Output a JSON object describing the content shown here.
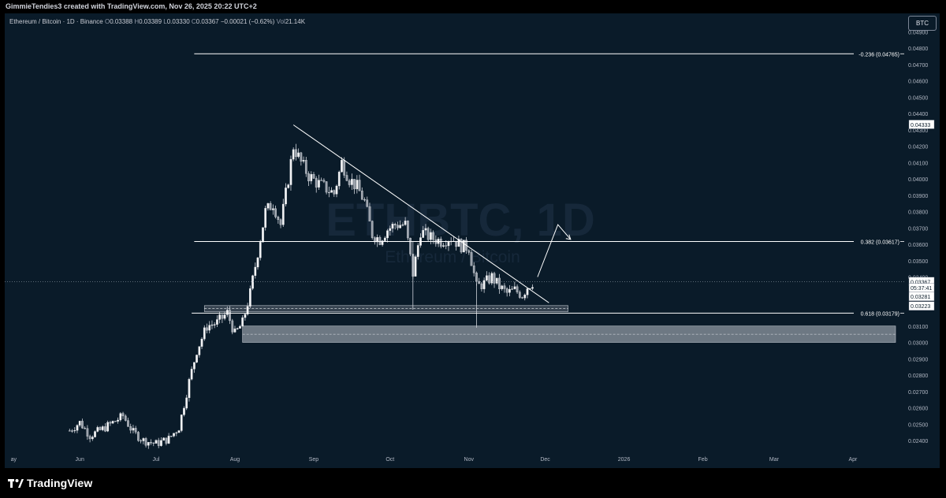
{
  "header": {
    "title": "GimmieTendies3 created with TradingView.com, Nov 26, 2025 20:22 UTC+2"
  },
  "legend": {
    "symbol": "Ethereum / Bitcoin · 1D · Binance",
    "o_label": "O",
    "o": "0.03388",
    "h_label": "H",
    "h": "0.03389",
    "l_label": "L",
    "l": "0.03330",
    "c_label": "C",
    "c": "0.03367",
    "change": "−0.00021 (−0.62%)",
    "vol_label": "Vol",
    "vol": "21.14K"
  },
  "currency_button": "BTC",
  "watermark": {
    "line1": "ETHBTC, 1D",
    "line2": "Ethereum / Bitcoin"
  },
  "brand": {
    "name": "TradingView"
  },
  "price_axis": {
    "labels": [
      "0.04900",
      "0.04800",
      "0.04700",
      "0.04600",
      "0.04500",
      "0.04400",
      "0.04300",
      "0.04200",
      "0.04100",
      "0.04000",
      "0.03900",
      "0.03800",
      "0.03700",
      "0.03600",
      "0.03500",
      "0.03400",
      "0.03100",
      "0.03000",
      "0.02900",
      "0.02800",
      "0.02700",
      "0.02600",
      "0.02500",
      "0.02400"
    ],
    "tags": [
      {
        "text": "0.04333",
        "value": 0.04333,
        "style": "box"
      },
      {
        "text": "0.03367",
        "value": 0.03372,
        "style": "box"
      },
      {
        "text": "05:37:41",
        "value": 0.03334,
        "style": "box"
      },
      {
        "text": "0.03281",
        "value": 0.03281,
        "style": "box"
      },
      {
        "text": "0.03223",
        "value": 0.03223,
        "style": "box"
      }
    ]
  },
  "fib_labels": [
    {
      "text": "-0.236 (0.04765)",
      "value": 0.04765
    },
    {
      "text": "0.382 (0.03617)",
      "value": 0.03617
    },
    {
      "text": "0.618 (0.03179)",
      "value": 0.03179
    }
  ],
  "colors": {
    "background": "#0a1b29",
    "up": "#e8eaed",
    "down": "#e8eaed",
    "line": "#ffffff",
    "zone": "#8a939f"
  },
  "chart_data": {
    "type": "candlestick",
    "title": "",
    "xlabel": "",
    "ylabel": "",
    "x_ticks": [
      "ay",
      "Jun",
      "Jul",
      "Aug",
      "Sep",
      "Oct",
      "Nov",
      "Dec",
      "2026",
      "Feb",
      "Mar",
      "Apr"
    ],
    "ylim": [
      0.0236,
      0.0493
    ],
    "last_close": 0.03367,
    "current_price_line": 0.03372,
    "series": [
      {
        "name": "Ethereum / Bitcoin",
        "close_path": [
          [
            "2025-05-28",
            0.0246
          ],
          [
            "2025-06-01",
            0.0251
          ],
          [
            "2025-06-05",
            0.0243
          ],
          [
            "2025-06-10",
            0.0247
          ],
          [
            "2025-06-15",
            0.0252
          ],
          [
            "2025-06-18",
            0.0255
          ],
          [
            "2025-06-22",
            0.0245
          ],
          [
            "2025-06-26",
            0.024
          ],
          [
            "2025-07-01",
            0.0238
          ],
          [
            "2025-07-06",
            0.0241
          ],
          [
            "2025-07-10",
            0.0248
          ],
          [
            "2025-07-14",
            0.0276
          ],
          [
            "2025-07-17",
            0.0295
          ],
          [
            "2025-07-21",
            0.031
          ],
          [
            "2025-07-25",
            0.0312
          ],
          [
            "2025-07-29",
            0.0318
          ],
          [
            "2025-08-01",
            0.0305
          ],
          [
            "2025-08-04",
            0.0312
          ],
          [
            "2025-08-07",
            0.033
          ],
          [
            "2025-08-10",
            0.0355
          ],
          [
            "2025-08-13",
            0.038
          ],
          [
            "2025-08-16",
            0.0385
          ],
          [
            "2025-08-19",
            0.0372
          ],
          [
            "2025-08-22",
            0.04
          ],
          [
            "2025-08-24",
            0.042
          ],
          [
            "2025-08-27",
            0.041
          ],
          [
            "2025-08-30",
            0.0402
          ],
          [
            "2025-09-02",
            0.0398
          ],
          [
            "2025-09-06",
            0.0394
          ],
          [
            "2025-09-09",
            0.0391
          ],
          [
            "2025-09-12",
            0.041
          ],
          [
            "2025-09-15",
            0.04
          ],
          [
            "2025-09-18",
            0.0395
          ],
          [
            "2025-09-21",
            0.0386
          ],
          [
            "2025-09-24",
            0.0366
          ],
          [
            "2025-09-27",
            0.0363
          ],
          [
            "2025-09-30",
            0.0369
          ],
          [
            "2025-10-03",
            0.0372
          ],
          [
            "2025-10-07",
            0.0372
          ],
          [
            "2025-10-10",
            0.0342
          ],
          [
            "2025-10-13",
            0.0368
          ],
          [
            "2025-10-17",
            0.0364
          ],
          [
            "2025-10-21",
            0.0362
          ],
          [
            "2025-10-25",
            0.0364
          ],
          [
            "2025-10-29",
            0.0359
          ],
          [
            "2025-11-01",
            0.0358
          ],
          [
            "2025-11-04",
            0.0334
          ],
          [
            "2025-11-07",
            0.0336
          ],
          [
            "2025-11-10",
            0.034
          ],
          [
            "2025-11-13",
            0.0334
          ],
          [
            "2025-11-16",
            0.033
          ],
          [
            "2025-11-19",
            0.0332
          ],
          [
            "2025-11-22",
            0.0329
          ],
          [
            "2025-11-24",
            0.0334
          ],
          [
            "2025-11-26",
            0.03367
          ]
        ]
      }
    ],
    "annotations": {
      "fib_levels": [
        {
          "ratio": "-0.236",
          "price": 0.04765
        },
        {
          "ratio": "0.382",
          "price": 0.03617
        },
        {
          "ratio": "0.618",
          "price": 0.03179
        }
      ],
      "trendline": {
        "from": [
          "2025-08-24",
          0.0433
        ],
        "to": [
          "2025-11-30",
          0.03223
        ]
      },
      "support_zones": [
        {
          "from": "2025-07-20",
          "to": "2025-12-10",
          "low": 0.03188,
          "high": 0.03225
        },
        {
          "from": "2025-08-04",
          "to": "2026-04-30",
          "low": 0.03,
          "high": 0.031
        }
      ],
      "projection_arrow": [
        [
          "2025-11-28",
          0.034
        ],
        [
          "2025-12-06",
          0.0372
        ],
        [
          "2025-12-11",
          0.0363
        ]
      ]
    }
  }
}
